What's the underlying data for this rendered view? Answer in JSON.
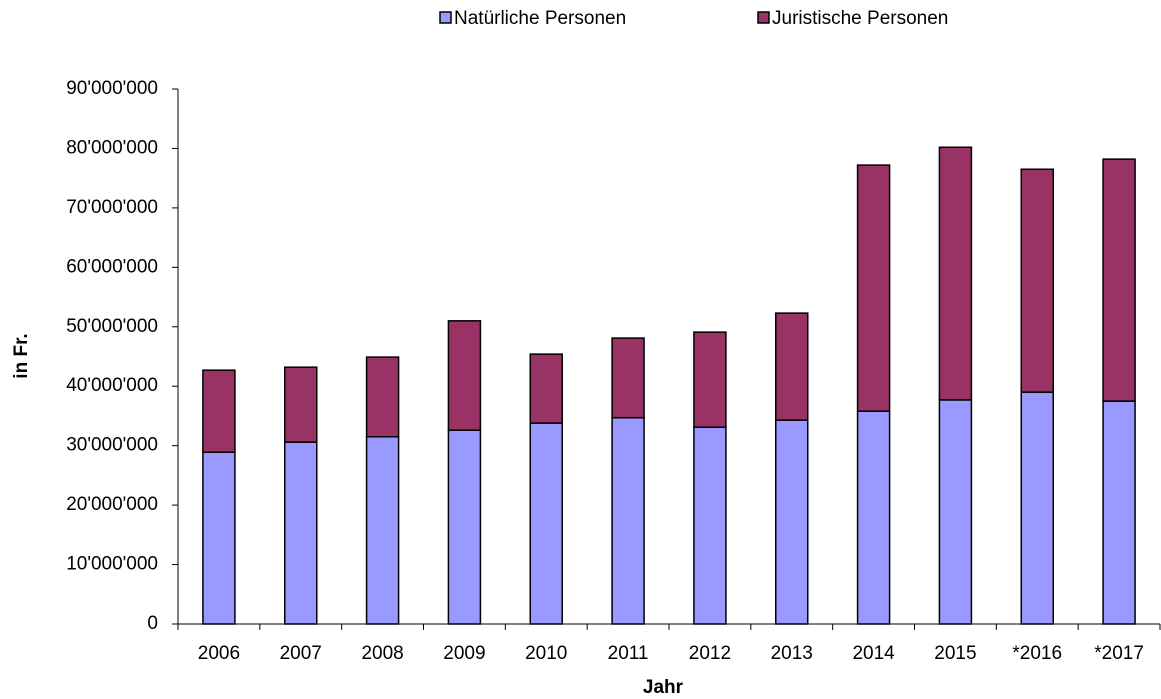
{
  "chart_data": {
    "type": "stacked_bar",
    "x_label": "Jahr",
    "y_label": "in Fr.",
    "categories": [
      "2006",
      "2007",
      "2008",
      "2009",
      "2010",
      "2011",
      "2012",
      "2013",
      "2014",
      "2015",
      "*2016",
      "*2017"
    ],
    "series": [
      {
        "name": "Natürliche Personen",
        "color": "#9999ff",
        "values": [
          28900000,
          30600000,
          31500000,
          32600000,
          33800000,
          34700000,
          33100000,
          34300000,
          35800000,
          37700000,
          39000000,
          37500000
        ]
      },
      {
        "name": "Juristische Personen",
        "color": "#993366",
        "values": [
          13800000,
          12600000,
          13400000,
          18400000,
          11600000,
          13400000,
          16000000,
          18000000,
          41400000,
          42500000,
          37500000,
          40700000
        ]
      }
    ],
    "ylim": [
      0,
      90000000
    ],
    "yticks": [
      0,
      {
        "value": 10000000,
        "label": "10'000'000"
      },
      {
        "value": 20000000,
        "label": "20'000'000"
      },
      {
        "value": 30000000,
        "label": "30'000'000"
      },
      {
        "value": 40000000,
        "label": "40'000'000"
      },
      {
        "value": 50000000,
        "label": "50'000'000"
      },
      {
        "value": 60000000,
        "label": "60'000'000"
      },
      {
        "value": 70000000,
        "label": "70'000'000"
      },
      {
        "value": 80000000,
        "label": "80'000'000"
      },
      {
        "value": 90000000,
        "label": "90'000'000"
      }
    ],
    "grid": false,
    "legend": "top"
  }
}
